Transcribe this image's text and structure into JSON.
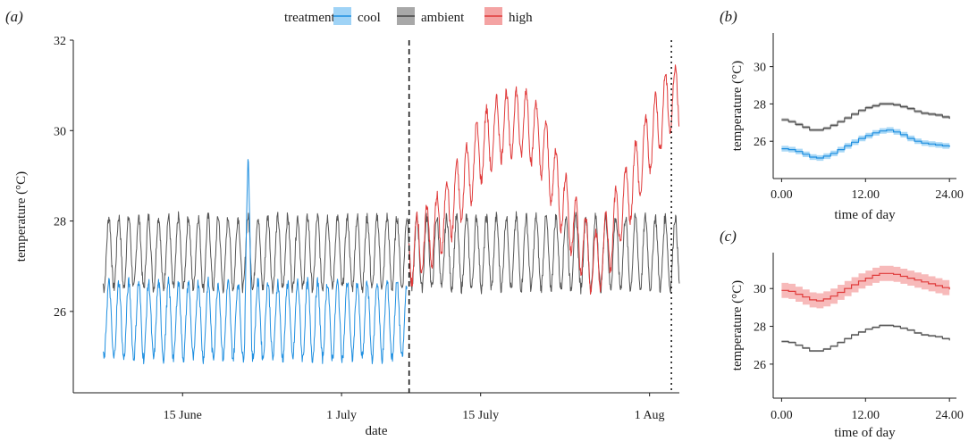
{
  "legend": {
    "title": "treatment",
    "items": [
      {
        "label": "cool",
        "color": "#1f8fe0"
      },
      {
        "label": "ambient",
        "color": "#555555"
      },
      {
        "label": "high",
        "color": "#e03a3a"
      }
    ]
  },
  "panel_labels": {
    "a": "(a)",
    "b": "(b)",
    "c": "(c)"
  },
  "chart_data": [
    {
      "id": "a",
      "type": "line",
      "xlabel": "date",
      "ylabel": "temperature (°C)",
      "x_tick_labels": [
        "15 June",
        "1 July",
        "15 July",
        "1 Aug"
      ],
      "x_tick_values": [
        14,
        30,
        44,
        61
      ],
      "x_unit": "days since 1 June",
      "xlim": [
        3,
        64
      ],
      "ylim": [
        24.2,
        32
      ],
      "y_ticks": [
        26,
        28,
        30,
        32
      ],
      "vlines": [
        {
          "x": 36.8,
          "style": "dashed"
        },
        {
          "x": 63.2,
          "style": "dotted"
        }
      ],
      "grid": false,
      "series": [
        {
          "name": "ambient",
          "color": "#555555",
          "x_range": [
            6,
            64
          ],
          "base": 27.3,
          "amplitude": 0.75
        },
        {
          "name": "cool",
          "color": "#1f8fe0",
          "x_range": [
            6,
            36.6
          ],
          "base": 25.8,
          "amplitude": 0.8,
          "spike": {
            "x": 20.6,
            "y": 29.5
          }
        },
        {
          "name": "high",
          "color": "#e03a3a",
          "x_range": [
            36.8,
            64
          ],
          "envelope": [
            [
              36.8,
              27.3
            ],
            [
              39.5,
              27.8
            ],
            [
              42,
              28.7
            ],
            [
              44,
              29.6
            ],
            [
              46,
              30.1
            ],
            [
              48.5,
              30.2
            ],
            [
              50,
              29.8
            ],
            [
              52,
              28.6
            ],
            [
              53.5,
              27.8
            ],
            [
              55.5,
              27.0
            ],
            [
              57,
              27.6
            ],
            [
              59,
              28.7
            ],
            [
              61,
              29.8
            ],
            [
              63,
              30.7
            ],
            [
              64,
              30.7
            ]
          ],
          "amplitude": 0.7
        }
      ]
    },
    {
      "id": "b",
      "type": "line",
      "xlabel": "time of day",
      "ylabel": "temperature (°C)",
      "x_tick_labels": [
        "0.00",
        "12.00",
        "24.00"
      ],
      "x_tick_values": [
        0,
        12,
        24
      ],
      "xlim": [
        -1.2,
        25
      ],
      "ylim": [
        24,
        31.8
      ],
      "y_ticks": [
        26,
        28,
        30
      ],
      "series": [
        {
          "name": "ambient",
          "color": "#555555",
          "ribbon": 0.08,
          "x": [
            0,
            1,
            2,
            3,
            4,
            5,
            6,
            7,
            8,
            9,
            10,
            11,
            12,
            13,
            14,
            15,
            16,
            17,
            18,
            19,
            20,
            21,
            22,
            23,
            24
          ],
          "y": [
            27.15,
            27.05,
            26.9,
            26.75,
            26.6,
            26.6,
            26.7,
            26.85,
            27.05,
            27.25,
            27.45,
            27.65,
            27.8,
            27.9,
            28.0,
            28.0,
            27.95,
            27.85,
            27.75,
            27.6,
            27.5,
            27.45,
            27.4,
            27.3,
            27.2
          ]
        },
        {
          "name": "cool",
          "color": "#1f8fe0",
          "ribbon": 0.15,
          "x": [
            0,
            1,
            2,
            3,
            4,
            5,
            6,
            7,
            8,
            9,
            10,
            11,
            12,
            13,
            14,
            15,
            16,
            17,
            18,
            19,
            20,
            21,
            22,
            23,
            24
          ],
          "y": [
            25.6,
            25.55,
            25.45,
            25.3,
            25.15,
            25.1,
            25.2,
            25.35,
            25.55,
            25.75,
            25.95,
            26.15,
            26.3,
            26.45,
            26.55,
            26.6,
            26.5,
            26.35,
            26.15,
            26.0,
            25.9,
            25.85,
            25.8,
            25.75,
            25.7
          ]
        }
      ]
    },
    {
      "id": "c",
      "type": "line",
      "xlabel": "time of day",
      "ylabel": "temperature (°C)",
      "x_tick_labels": [
        "0.00",
        "12.00",
        "24.00"
      ],
      "x_tick_values": [
        0,
        12,
        24
      ],
      "xlim": [
        -1.2,
        25
      ],
      "ylim": [
        24.2,
        31.9
      ],
      "y_ticks": [
        26,
        28,
        30
      ],
      "series": [
        {
          "name": "high",
          "color": "#e03a3a",
          "ribbon": 0.4,
          "x": [
            0,
            1,
            2,
            3,
            4,
            5,
            6,
            7,
            8,
            9,
            10,
            11,
            12,
            13,
            14,
            15,
            16,
            17,
            18,
            19,
            20,
            21,
            22,
            23,
            24
          ],
          "y": [
            29.9,
            29.85,
            29.7,
            29.55,
            29.4,
            29.35,
            29.45,
            29.6,
            29.8,
            30.0,
            30.2,
            30.4,
            30.55,
            30.7,
            30.8,
            30.8,
            30.75,
            30.65,
            30.55,
            30.45,
            30.35,
            30.25,
            30.15,
            30.05,
            29.95
          ]
        },
        {
          "name": "ambient",
          "color": "#555555",
          "ribbon": 0.05,
          "x": [
            0,
            1,
            2,
            3,
            4,
            5,
            6,
            7,
            8,
            9,
            10,
            11,
            12,
            13,
            14,
            15,
            16,
            17,
            18,
            19,
            20,
            21,
            22,
            23,
            24
          ],
          "y": [
            27.2,
            27.15,
            27.0,
            26.85,
            26.7,
            26.7,
            26.8,
            26.95,
            27.15,
            27.35,
            27.55,
            27.7,
            27.85,
            27.95,
            28.05,
            28.05,
            28.0,
            27.9,
            27.8,
            27.65,
            27.55,
            27.5,
            27.45,
            27.35,
            27.25
          ]
        }
      ]
    }
  ]
}
